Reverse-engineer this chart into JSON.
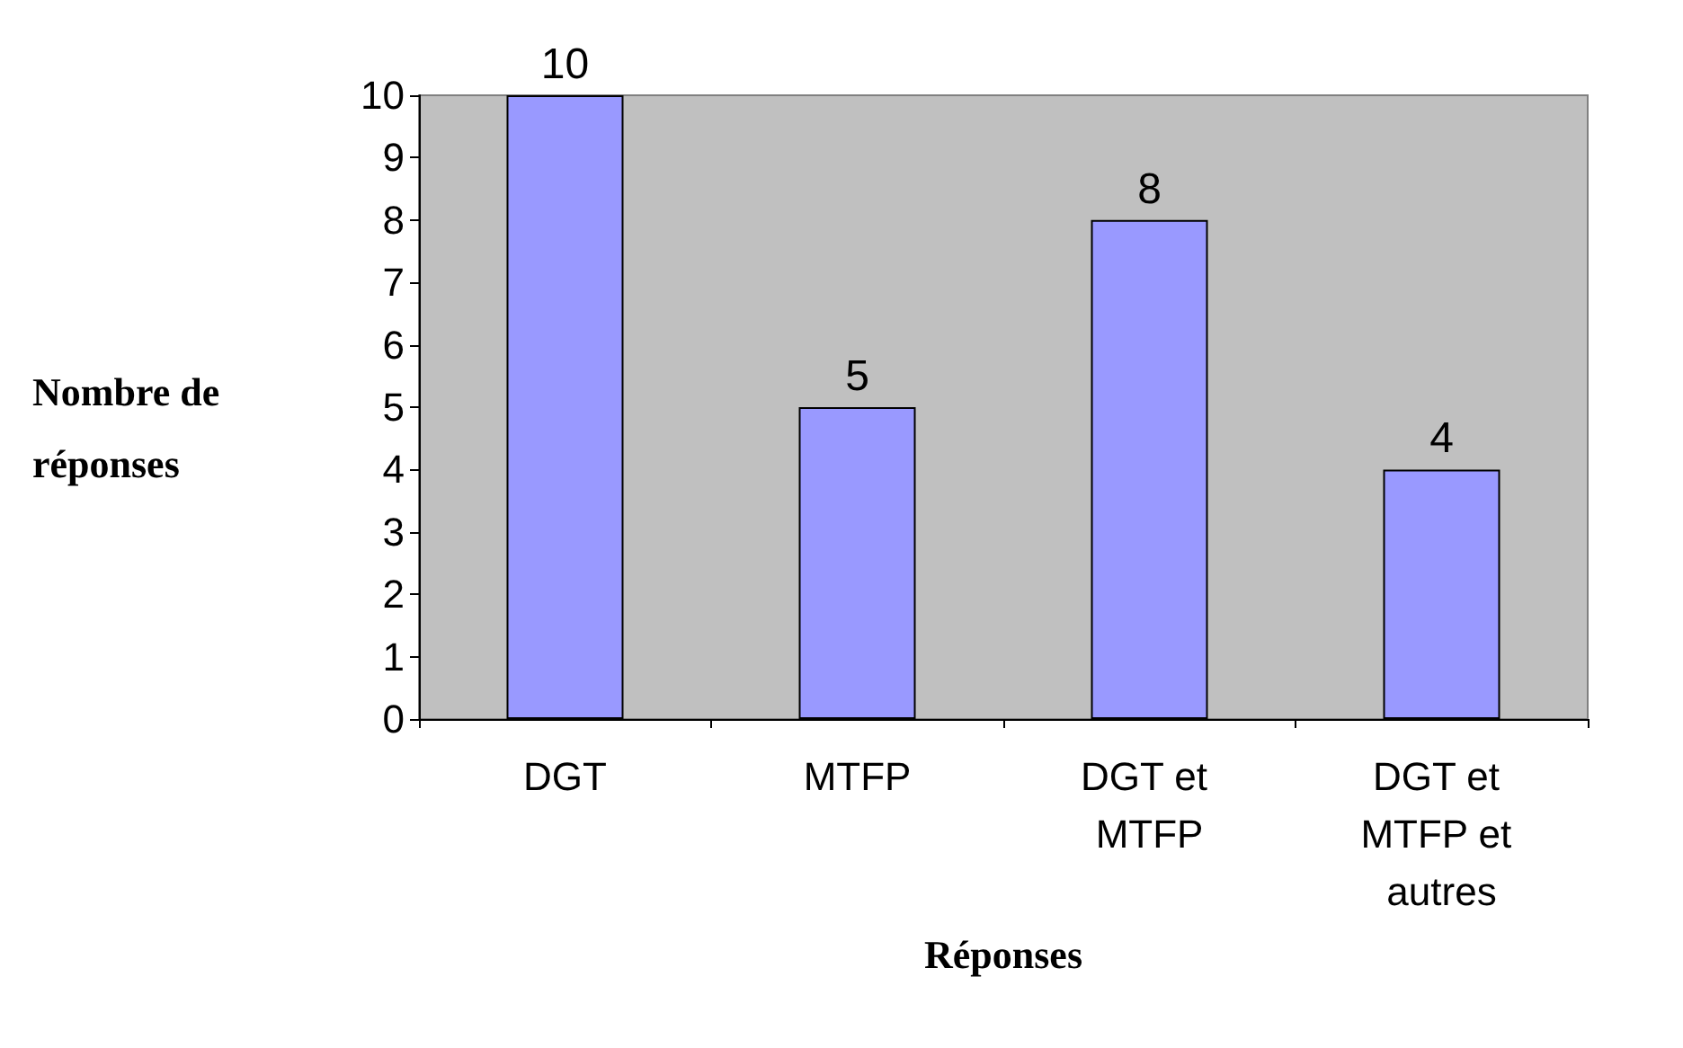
{
  "chart_data": {
    "type": "bar",
    "xlabel": "Réponses",
    "ylabel": "Nombre de réponses",
    "categories": [
      "DGT",
      "MTFP",
      "DGT et MTFP",
      "DGT et MTFP et autres"
    ],
    "values": [
      10,
      5,
      8,
      4
    ],
    "color": "#9999ff",
    "ylim": [
      0,
      10
    ],
    "yticks": [
      0,
      1,
      2,
      3,
      4,
      5,
      6,
      7,
      8,
      9,
      10
    ],
    "data_labels": true,
    "grid": false
  }
}
